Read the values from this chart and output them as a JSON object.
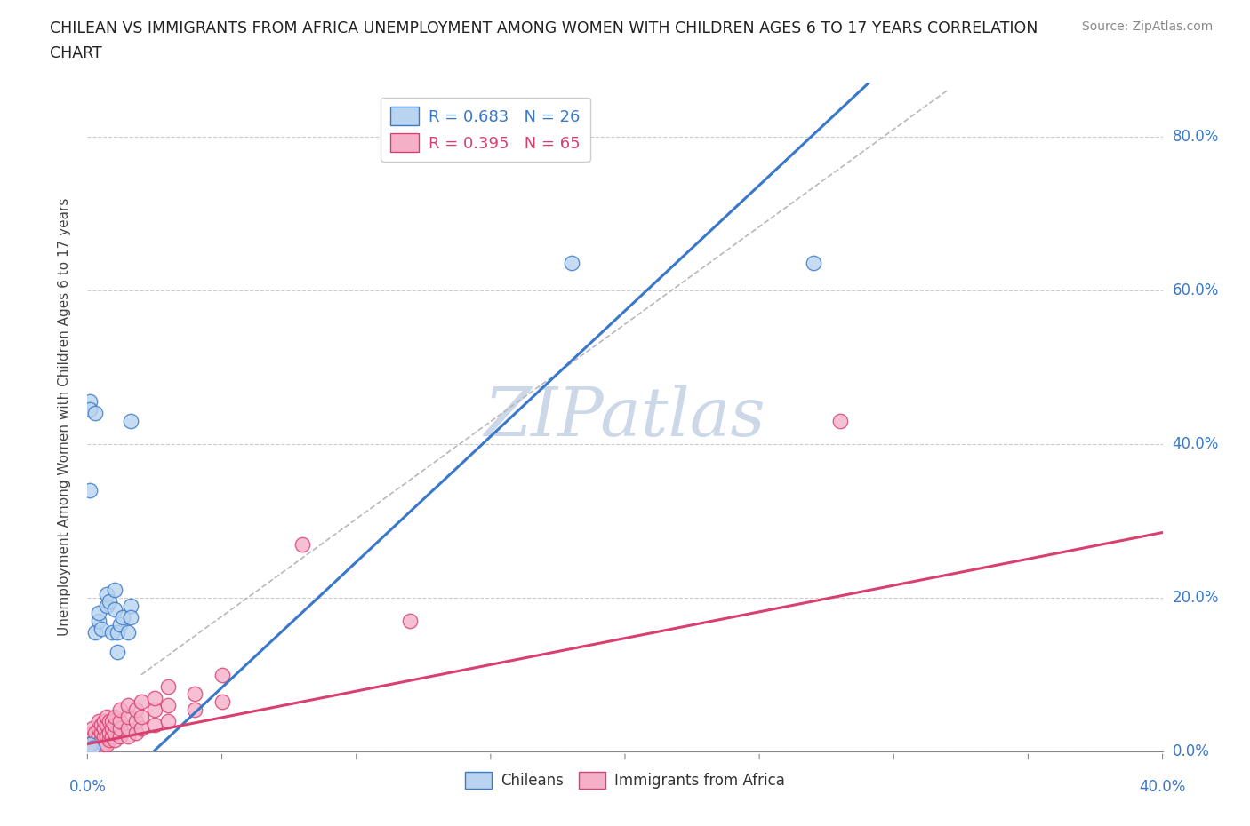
{
  "title_line1": "CHILEAN VS IMMIGRANTS FROM AFRICA UNEMPLOYMENT AMONG WOMEN WITH CHILDREN AGES 6 TO 17 YEARS CORRELATION",
  "title_line2": "CHART",
  "source": "Source: ZipAtlas.com",
  "ylabel": "Unemployment Among Women with Children Ages 6 to 17 years",
  "yaxis_labels": [
    "0.0%",
    "20.0%",
    "40.0%",
    "60.0%",
    "80.0%"
  ],
  "xlim": [
    0.0,
    0.4
  ],
  "ylim": [
    0.0,
    0.87
  ],
  "chilean_R": 0.683,
  "chilean_N": 26,
  "africa_R": 0.395,
  "africa_N": 65,
  "chilean_color": "#b8d4f0",
  "africa_color": "#f5b0c8",
  "chilean_line_color": "#3a78c9",
  "africa_line_color": "#d84070",
  "trendline_color": "#b8b8b8",
  "title_color": "#222222",
  "source_color": "#888888",
  "axis_label_color": "#3a78c9",
  "chilean_scatter": [
    [
      0.001,
      0.455
    ],
    [
      0.001,
      0.445
    ],
    [
      0.003,
      0.44
    ],
    [
      0.016,
      0.43
    ],
    [
      0.001,
      0.34
    ],
    [
      0.001,
      0.01
    ],
    [
      0.002,
      0.005
    ],
    [
      0.003,
      0.155
    ],
    [
      0.004,
      0.17
    ],
    [
      0.004,
      0.18
    ],
    [
      0.005,
      0.16
    ],
    [
      0.007,
      0.19
    ],
    [
      0.007,
      0.205
    ],
    [
      0.008,
      0.195
    ],
    [
      0.009,
      0.155
    ],
    [
      0.01,
      0.185
    ],
    [
      0.01,
      0.21
    ],
    [
      0.011,
      0.155
    ],
    [
      0.011,
      0.13
    ],
    [
      0.012,
      0.165
    ],
    [
      0.013,
      0.175
    ],
    [
      0.015,
      0.155
    ],
    [
      0.016,
      0.19
    ],
    [
      0.016,
      0.175
    ],
    [
      0.18,
      0.635
    ],
    [
      0.27,
      0.635
    ]
  ],
  "africa_scatter": [
    [
      0.001,
      0.005
    ],
    [
      0.001,
      0.01
    ],
    [
      0.001,
      0.015
    ],
    [
      0.001,
      0.02
    ],
    [
      0.002,
      0.005
    ],
    [
      0.002,
      0.01
    ],
    [
      0.002,
      0.02
    ],
    [
      0.002,
      0.025
    ],
    [
      0.002,
      0.03
    ],
    [
      0.003,
      0.005
    ],
    [
      0.003,
      0.015
    ],
    [
      0.003,
      0.025
    ],
    [
      0.004,
      0.01
    ],
    [
      0.004,
      0.02
    ],
    [
      0.004,
      0.03
    ],
    [
      0.004,
      0.04
    ],
    [
      0.005,
      0.005
    ],
    [
      0.005,
      0.015
    ],
    [
      0.005,
      0.025
    ],
    [
      0.005,
      0.035
    ],
    [
      0.006,
      0.01
    ],
    [
      0.006,
      0.02
    ],
    [
      0.006,
      0.03
    ],
    [
      0.006,
      0.04
    ],
    [
      0.007,
      0.01
    ],
    [
      0.007,
      0.02
    ],
    [
      0.007,
      0.035
    ],
    [
      0.007,
      0.045
    ],
    [
      0.008,
      0.015
    ],
    [
      0.008,
      0.025
    ],
    [
      0.008,
      0.04
    ],
    [
      0.009,
      0.02
    ],
    [
      0.009,
      0.03
    ],
    [
      0.009,
      0.04
    ],
    [
      0.01,
      0.015
    ],
    [
      0.01,
      0.025
    ],
    [
      0.01,
      0.035
    ],
    [
      0.01,
      0.045
    ],
    [
      0.012,
      0.02
    ],
    [
      0.012,
      0.03
    ],
    [
      0.012,
      0.04
    ],
    [
      0.012,
      0.055
    ],
    [
      0.015,
      0.02
    ],
    [
      0.015,
      0.03
    ],
    [
      0.015,
      0.045
    ],
    [
      0.015,
      0.06
    ],
    [
      0.018,
      0.025
    ],
    [
      0.018,
      0.04
    ],
    [
      0.018,
      0.055
    ],
    [
      0.02,
      0.03
    ],
    [
      0.02,
      0.045
    ],
    [
      0.02,
      0.065
    ],
    [
      0.025,
      0.035
    ],
    [
      0.025,
      0.055
    ],
    [
      0.025,
      0.07
    ],
    [
      0.03,
      0.04
    ],
    [
      0.03,
      0.06
    ],
    [
      0.03,
      0.085
    ],
    [
      0.04,
      0.055
    ],
    [
      0.04,
      0.075
    ],
    [
      0.05,
      0.065
    ],
    [
      0.05,
      0.1
    ],
    [
      0.08,
      0.27
    ],
    [
      0.12,
      0.17
    ],
    [
      0.28,
      0.43
    ]
  ],
  "chilean_trendline": [
    [
      0.0,
      -0.08
    ],
    [
      0.3,
      0.9
    ]
  ],
  "africa_trendline": [
    [
      0.0,
      0.01
    ],
    [
      0.4,
      0.285
    ]
  ],
  "ref_line": [
    [
      0.02,
      0.1
    ],
    [
      0.32,
      0.86
    ]
  ]
}
